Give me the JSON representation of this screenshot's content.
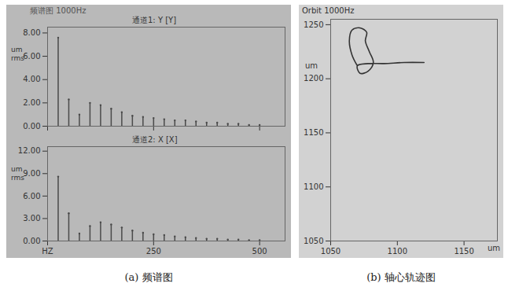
{
  "panel_title": "频谱图 1000Hz",
  "captions": [
    "(a) 频谱图",
    "(b) 轴心轨迹图"
  ],
  "chart_data": [
    {
      "type": "spectrum",
      "title": "通道1: Y [Y]",
      "y_label": "um rms",
      "color": "#4a4a4a",
      "x": [
        25,
        50,
        75,
        100,
        125,
        150,
        175,
        200,
        225,
        250,
        275,
        300,
        325,
        350,
        375,
        400,
        425,
        450,
        475,
        500
      ],
      "values": [
        7.6,
        2.3,
        1.0,
        2.0,
        1.8,
        1.5,
        1.2,
        0.9,
        0.8,
        0.7,
        0.6,
        0.5,
        0.5,
        0.4,
        0.3,
        0.3,
        0.2,
        0.2,
        0.1,
        0.1
      ],
      "xlim": [
        0,
        560
      ],
      "xticks": [
        0,
        250,
        500
      ],
      "ylim": [
        0,
        8.5
      ],
      "yticks": [
        {
          "value": 0,
          "label": "0.00"
        },
        {
          "value": 2,
          "label": "2.00"
        },
        {
          "value": 4,
          "label": "4.00"
        },
        {
          "value": 6,
          "label": "6.00"
        },
        {
          "value": 8,
          "label": "8.00"
        }
      ],
      "tick_labels": "y",
      "grid": false
    },
    {
      "type": "spectrum",
      "title": "通道2: X [X]",
      "y_label": "um rms",
      "color": "#4a4a4a",
      "x": [
        25,
        50,
        75,
        100,
        125,
        150,
        175,
        200,
        225,
        250,
        275,
        300,
        325,
        350,
        375,
        400,
        425,
        450,
        475,
        500
      ],
      "values": [
        8.6,
        3.7,
        1.0,
        2.0,
        2.5,
        2.2,
        1.8,
        1.4,
        1.1,
        0.9,
        0.8,
        0.6,
        0.5,
        0.4,
        0.3,
        0.3,
        0.2,
        0.2,
        0.1,
        0.1
      ],
      "xlim": [
        0,
        560
      ],
      "xticks": [
        {
          "value": 0,
          "label": "HZ"
        },
        250,
        500
      ],
      "ylim": [
        0,
        12.6
      ],
      "yticks": [
        {
          "value": 0,
          "label": "0.00"
        },
        {
          "value": 3,
          "label": "3.00"
        },
        {
          "value": 6,
          "label": "6.00"
        },
        {
          "value": 9,
          "label": "9.00"
        },
        {
          "value": 12,
          "label": "12.00"
        }
      ],
      "grid": false
    },
    {
      "type": "line",
      "title": "Orbit 1000Hz",
      "x_label": "um",
      "y_label": "um",
      "color": "#333333",
      "x": [
        1070,
        1066,
        1064,
        1066,
        1072,
        1077,
        1076,
        1079,
        1082,
        1078,
        1072,
        1070,
        1078,
        1090,
        1105,
        1120
      ],
      "values": [
        1212,
        1222,
        1235,
        1245,
        1247,
        1243,
        1235,
        1225,
        1215,
        1207,
        1205,
        1212,
        1214,
        1214,
        1215,
        1215
      ],
      "xlim": [
        1050,
        1175
      ],
      "xticks": [
        1050,
        1100,
        1150
      ],
      "ylim": [
        1050,
        1255
      ],
      "yticks": [
        1050,
        1100,
        1150,
        1200,
        1250
      ],
      "grid": false
    }
  ]
}
